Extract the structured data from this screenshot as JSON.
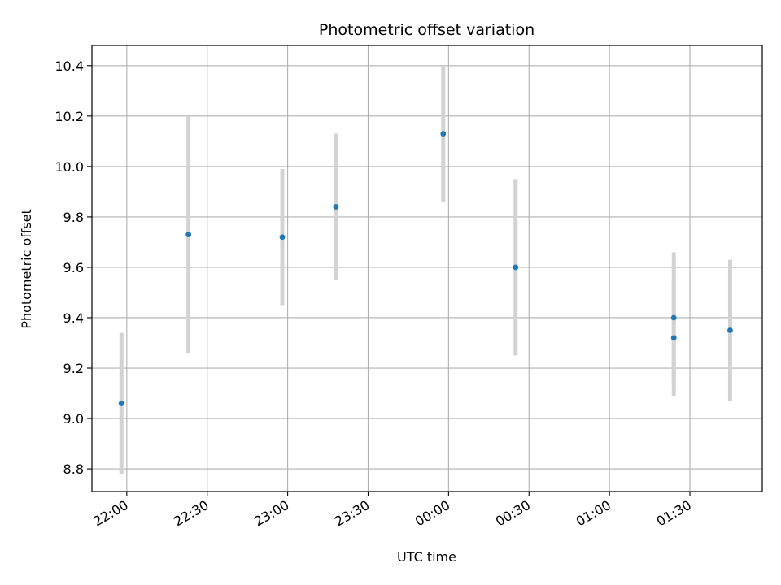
{
  "chart_data": {
    "type": "scatter",
    "title": "Photometric offset variation",
    "xlabel": "UTC time",
    "ylabel": "Photometric offset",
    "x_ticks": [
      "22:00",
      "22:30",
      "23:00",
      "23:30",
      "00:00",
      "00:30",
      "01:00",
      "01:30"
    ],
    "x_tick_minutes": [
      0,
      30,
      60,
      90,
      120,
      150,
      180,
      210
    ],
    "xlim_minutes": [
      -13,
      237
    ],
    "x_ref_time": "22:00",
    "y_ticks": [
      "8.8",
      "9.0",
      "9.2",
      "9.4",
      "9.6",
      "9.8",
      "10.0",
      "10.2",
      "10.4"
    ],
    "ylim": [
      8.71,
      10.48
    ],
    "grid": true,
    "colors": {
      "point": "#1f77b4",
      "errorbar": "#d3d3d3",
      "grid": "#b0b0b0"
    },
    "points": [
      {
        "x": "21:58",
        "y": 9.06,
        "err": 0.28
      },
      {
        "x": "22:23",
        "y": 9.73,
        "err": 0.47
      },
      {
        "x": "22:58",
        "y": 9.72,
        "err": 0.27
      },
      {
        "x": "23:18",
        "y": 9.84,
        "err": 0.29
      },
      {
        "x": "23:58",
        "y": 10.13,
        "err": 0.27
      },
      {
        "x": "00:25",
        "y": 9.6,
        "err": 0.35
      },
      {
        "x": "01:24",
        "y": 9.32,
        "err": 0.23
      },
      {
        "x": "01:24",
        "y": 9.4,
        "err": 0.26
      },
      {
        "x": "01:45",
        "y": 9.35,
        "err": 0.28
      }
    ]
  }
}
